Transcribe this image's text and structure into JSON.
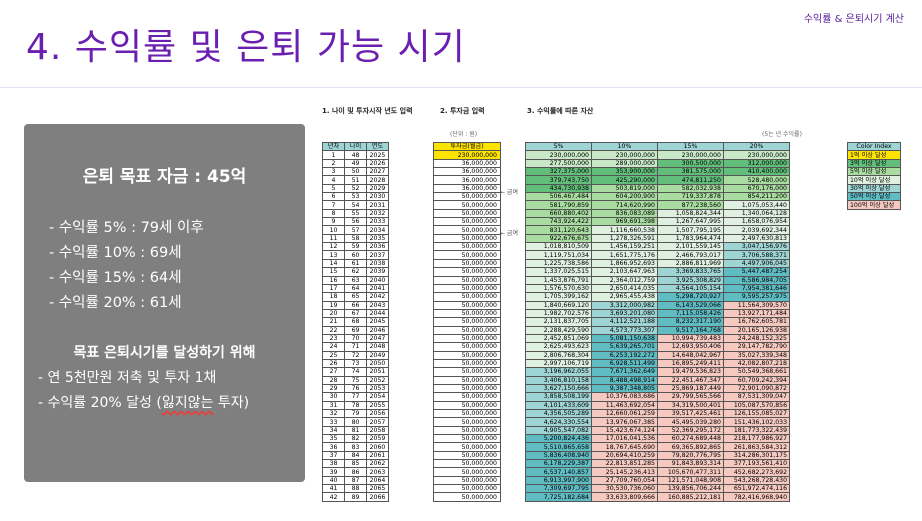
{
  "header_tag": "수익률 & 은퇴시기 계산",
  "title": "4. 수익률 및 은퇴 가능 시기",
  "panel": {
    "goal": "은퇴 목표 자금 : 45억",
    "rates": [
      "- 수익률    5% : 79세 이후",
      "- 수익률 10% : 69세",
      "- 수익률 15% : 64세",
      "- 수익률 20% : 61세"
    ],
    "sub_title": "목표 은퇴시기를 달성하기 위해",
    "actions": [
      "- 연 5천만원 저축 및 투자 1채"
    ],
    "action2_prefix": "- 수익률 20% 달성 (",
    "action2_squiggle": "잃지않는",
    "action2_suffix": " 투자)"
  },
  "sheet": {
    "section1": "1. 나이 및 투자시작 년도 입력",
    "section2": "2. 투자금 입력",
    "section3": "3. 수익률에 따른 자산",
    "unit_left": "(단위 : 원)",
    "unit_right": "(5는 년 수익률)",
    "age_headers": [
      "년차",
      "나이",
      "연도"
    ],
    "inv_header": "투자금(월금)",
    "asset_headers": [
      "5%",
      "10%",
      "15%",
      "20%"
    ],
    "note1": "← 금여",
    "note2": "← 금여",
    "legend_header": "Color Index",
    "legend": [
      "1억 이상 달성",
      "3억 이상 달성",
      "5억 이상 달성",
      "10억 이상 달성",
      "30억 이상 달성",
      "50억 이상 달성",
      "100억 이상 달성"
    ],
    "legend_colors": [
      "#ffe400",
      "#63be7b",
      "#a9dca0",
      "#dff0e0",
      "#9fd4d4",
      "#5fbcc3",
      "#f5c9c0"
    ],
    "rows": [
      [
        "1",
        "48",
        "2025",
        "230,000,000",
        "230,000,000",
        "230,000,000",
        "230,000,000",
        "230,000,000"
      ],
      [
        "2",
        "49",
        "2026",
        "36,000,000",
        "277,500,000",
        "289,000,000",
        "300,500,000",
        "312,000,000"
      ],
      [
        "3",
        "50",
        "2027",
        "36,000,000",
        "327,375,000",
        "353,900,000",
        "381,575,000",
        "410,400,000"
      ],
      [
        "4",
        "51",
        "2028",
        "36,000,000",
        "379,743,750",
        "425,290,000",
        "474,811,250",
        "528,480,000"
      ],
      [
        "5",
        "52",
        "2029",
        "36,000,000",
        "434,730,938",
        "503,819,000",
        "582,032,938",
        "670,176,000"
      ],
      [
        "6",
        "53",
        "2030",
        "50,000,000",
        "506,467,484",
        "604,200,900",
        "719,337,878",
        "854,211,200"
      ],
      [
        "7",
        "54",
        "2031",
        "50,000,000",
        "581,790,859",
        "714,620,990",
        "877,238,560",
        "1,075,053,440"
      ],
      [
        "8",
        "55",
        "2032",
        "50,000,000",
        "660,880,402",
        "836,083,089",
        "1,058,824,344",
        "1,340,064,128"
      ],
      [
        "9",
        "56",
        "2033",
        "50,000,000",
        "743,924,422",
        "969,691,398",
        "1,267,647,995",
        "1,658,076,954"
      ],
      [
        "10",
        "57",
        "2034",
        "50,000,000",
        "831,120,643",
        "1,116,660,538",
        "1,507,795,195",
        "2,039,692,344"
      ],
      [
        "11",
        "58",
        "2035",
        "50,000,000",
        "922,676,675",
        "1,278,326,591",
        "1,783,964,474",
        "2,497,630,813"
      ],
      [
        "12",
        "59",
        "2036",
        "50,000,000",
        "1,018,810,509",
        "1,456,159,251",
        "2,101,559,145",
        "3,047,156,976"
      ],
      [
        "13",
        "60",
        "2037",
        "50,000,000",
        "1,119,751,034",
        "1,651,775,176",
        "2,466,793,017",
        "3,706,588,371"
      ],
      [
        "14",
        "61",
        "2038",
        "50,000,000",
        "1,225,738,586",
        "1,866,952,693",
        "2,886,811,969",
        "4,497,906,045"
      ],
      [
        "15",
        "62",
        "2039",
        "50,000,000",
        "1,337,025,515",
        "2,103,647,963",
        "3,369,833,765",
        "5,447,487,254"
      ],
      [
        "16",
        "63",
        "2040",
        "50,000,000",
        "1,453,876,791",
        "2,364,012,759",
        "3,925,308,829",
        "6,586,984,705"
      ],
      [
        "17",
        "64",
        "2041",
        "50,000,000",
        "1,576,570,630",
        "2,650,414,035",
        "4,564,105,154",
        "7,954,381,646"
      ],
      [
        "18",
        "65",
        "2042",
        "50,000,000",
        "1,705,399,162",
        "2,965,455,438",
        "5,298,720,927",
        "9,595,257,975"
      ],
      [
        "19",
        "66",
        "2043",
        "50,000,000",
        "1,840,669,120",
        "3,312,000,982",
        "6,143,529,066",
        "11,564,309,570"
      ],
      [
        "20",
        "67",
        "2044",
        "50,000,000",
        "1,982,702,576",
        "3,693,201,080",
        "7,115,058,426",
        "13,927,171,484"
      ],
      [
        "21",
        "68",
        "2045",
        "50,000,000",
        "2,131,837,705",
        "4,112,521,188",
        "8,232,317,190",
        "16,762,605,781"
      ],
      [
        "22",
        "69",
        "2046",
        "50,000,000",
        "2,288,429,590",
        "4,573,773,307",
        "9,517,164,768",
        "20,165,126,938"
      ],
      [
        "23",
        "70",
        "2047",
        "50,000,000",
        "2,452,851,069",
        "5,081,150,638",
        "10,994,739,483",
        "24,248,152,325"
      ],
      [
        "24",
        "71",
        "2048",
        "50,000,000",
        "2,625,493,623",
        "5,639,265,701",
        "12,693,950,406",
        "29,147,782,790"
      ],
      [
        "25",
        "72",
        "2049",
        "50,000,000",
        "2,806,768,304",
        "6,253,192,272",
        "14,648,042,967",
        "35,027,339,348"
      ],
      [
        "26",
        "73",
        "2050",
        "50,000,000",
        "2,997,106,719",
        "6,928,511,499",
        "16,895,249,411",
        "42,082,807,218"
      ],
      [
        "27",
        "74",
        "2051",
        "50,000,000",
        "3,196,962,055",
        "7,671,362,649",
        "19,479,536,823",
        "50,549,368,661"
      ],
      [
        "28",
        "75",
        "2052",
        "50,000,000",
        "3,406,810,158",
        "8,488,498,914",
        "22,451,467,347",
        "60,709,242,394"
      ],
      [
        "29",
        "76",
        "2053",
        "50,000,000",
        "3,627,150,666",
        "9,387,348,805",
        "25,869,187,449",
        "72,901,090,872"
      ],
      [
        "30",
        "77",
        "2054",
        "50,000,000",
        "3,858,508,199",
        "10,376,083,686",
        "29,799,565,566",
        "87,531,309,047"
      ],
      [
        "31",
        "78",
        "2055",
        "50,000,000",
        "4,101,433,609",
        "11,463,692,054",
        "34,319,500,401",
        "105,087,570,856"
      ],
      [
        "32",
        "79",
        "2056",
        "50,000,000",
        "4,356,505,289",
        "12,660,061,259",
        "39,517,425,461",
        "126,155,085,027"
      ],
      [
        "33",
        "80",
        "2057",
        "50,000,000",
        "4,624,330,554",
        "13,976,067,385",
        "45,495,039,280",
        "151,436,102,033"
      ],
      [
        "34",
        "81",
        "2058",
        "50,000,000",
        "4,905,547,082",
        "15,423,674,124",
        "52,369,295,172",
        "181,773,322,439"
      ],
      [
        "35",
        "82",
        "2059",
        "50,000,000",
        "5,200,824,436",
        "17,016,041,536",
        "60,274,689,448",
        "218,177,986,927"
      ],
      [
        "36",
        "83",
        "2060",
        "50,000,000",
        "5,510,865,658",
        "18,767,645,690",
        "69,365,892,865",
        "261,863,584,312"
      ],
      [
        "37",
        "84",
        "2061",
        "50,000,000",
        "5,836,408,940",
        "20,694,410,259",
        "79,820,776,795",
        "314,286,301,175"
      ],
      [
        "38",
        "85",
        "2062",
        "50,000,000",
        "6,178,229,387",
        "22,813,851,285",
        "91,843,893,314",
        "377,193,561,410"
      ],
      [
        "39",
        "86",
        "2063",
        "50,000,000",
        "6,537,140,857",
        "25,145,236,413",
        "105,670,477,311",
        "452,682,273,692"
      ],
      [
        "40",
        "87",
        "2064",
        "50,000,000",
        "6,913,997,900",
        "27,709,760,054",
        "121,571,048,908",
        "543,268,728,430"
      ],
      [
        "41",
        "88",
        "2065",
        "50,000,000",
        "7,309,697,795",
        "30,530,736,060",
        "139,856,706,244",
        "651,972,474,116"
      ],
      [
        "42",
        "89",
        "2066",
        "50,000,000",
        "7,725,182,684",
        "33,633,809,666",
        "160,885,212,181",
        "782,416,968,940"
      ]
    ]
  }
}
